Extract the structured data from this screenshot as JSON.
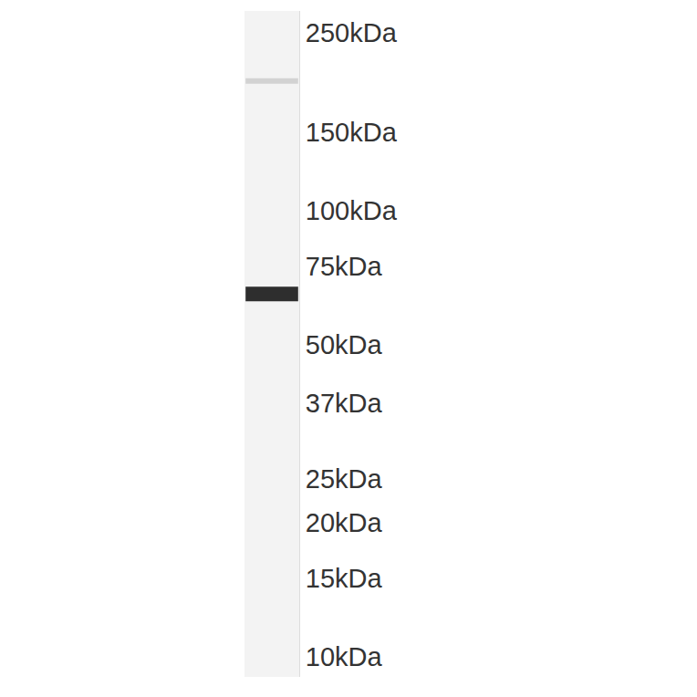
{
  "chart_data": {
    "type": "western_blot",
    "log": "y",
    "ylim": [
      9,
      280
    ],
    "yticks": [
      {
        "value": 250,
        "label": "250kDa"
      },
      {
        "value": 150,
        "label": "150kDa"
      },
      {
        "value": 100,
        "label": "100kDa"
      },
      {
        "value": 75,
        "label": "75kDa"
      },
      {
        "value": 50,
        "label": "50kDa"
      },
      {
        "value": 37,
        "label": "37kDa"
      },
      {
        "value": 25,
        "label": "25kDa"
      },
      {
        "value": 20,
        "label": "20kDa"
      },
      {
        "value": 15,
        "label": "15kDa"
      },
      {
        "value": 10,
        "label": "10kDa"
      }
    ],
    "tick_labels": "y",
    "bands": [
      65,
      195
    ],
    "colors": [
      "#2e2e2e",
      "#d2d2d2"
    ]
  }
}
